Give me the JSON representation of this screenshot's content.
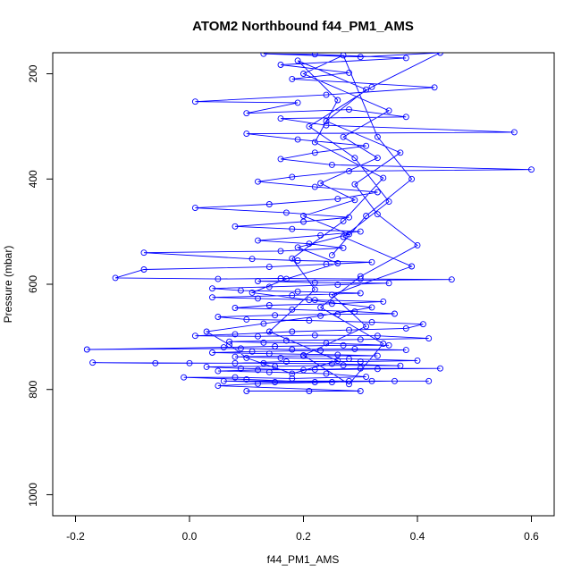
{
  "chart_data": {
    "type": "scatter",
    "title": "ATOM2 Northbound f44_PM1_AMS",
    "xlabel": "f44_PM1_AMS",
    "ylabel": "Pressure (mbar)",
    "xlim": [
      -0.24,
      0.64
    ],
    "ylim": [
      1040,
      160
    ],
    "y_reversed": true,
    "x_ticks": [
      "-0.2",
      "0.0",
      "0.2",
      "0.4",
      "0.6"
    ],
    "x_tick_values": [
      -0.2,
      0.0,
      0.2,
      0.4,
      0.6
    ],
    "y_ticks": [
      "200",
      "400",
      "600",
      "800",
      "1000"
    ],
    "y_tick_values": [
      200,
      400,
      600,
      800,
      1000
    ],
    "grid": false,
    "legend": "none",
    "series_color": "#0000ff",
    "marker": "open-circle",
    "connected": true,
    "series": [
      {
        "points": [
          [
            0.1,
            803
          ],
          [
            0.21,
            803
          ],
          [
            0.3,
            803
          ],
          [
            0.05,
            793
          ],
          [
            0.12,
            789
          ],
          [
            0.25,
            786
          ],
          [
            0.32,
            784
          ],
          [
            0.06,
            784
          ],
          [
            0.15,
            786
          ],
          [
            0.28,
            784
          ],
          [
            0.42,
            784
          ],
          [
            0.36,
            784
          ],
          [
            0.22,
            786
          ],
          [
            0.1,
            781
          ],
          [
            -0.01,
            777
          ],
          [
            0.08,
            777
          ],
          [
            0.18,
            779
          ],
          [
            0.31,
            776
          ],
          [
            0.24,
            770
          ],
          [
            0.14,
            767
          ],
          [
            0.05,
            765
          ],
          [
            0.12,
            763
          ],
          [
            0.22,
            762
          ],
          [
            0.3,
            760
          ],
          [
            0.44,
            760
          ],
          [
            0.33,
            761
          ],
          [
            0.2,
            763
          ],
          [
            0.09,
            760
          ],
          [
            0.03,
            757
          ],
          [
            0.15,
            756
          ],
          [
            0.27,
            754
          ],
          [
            0.37,
            755
          ],
          [
            0.25,
            751
          ],
          [
            0.13,
            750
          ],
          [
            0.0,
            750
          ],
          [
            -0.06,
            750
          ],
          [
            -0.17,
            749
          ],
          [
            0.08,
            750
          ],
          [
            0.17,
            747
          ],
          [
            0.3,
            747
          ],
          [
            0.4,
            745
          ],
          [
            0.28,
            742
          ],
          [
            0.16,
            740
          ],
          [
            0.08,
            738
          ],
          [
            0.2,
            736
          ],
          [
            0.33,
            736
          ],
          [
            0.26,
            734
          ],
          [
            0.14,
            732
          ],
          [
            0.04,
            730
          ],
          [
            0.11,
            728
          ],
          [
            0.23,
            726
          ],
          [
            0.38,
            725
          ],
          [
            0.29,
            723
          ],
          [
            0.18,
            724
          ],
          [
            0.09,
            722
          ],
          [
            -0.18,
            724
          ],
          [
            0.06,
            720
          ],
          [
            0.15,
            718
          ],
          [
            0.27,
            716
          ],
          [
            0.35,
            716
          ],
          [
            0.24,
            712
          ],
          [
            0.13,
            711
          ],
          [
            0.07,
            709
          ],
          [
            0.17,
            707
          ],
          [
            0.3,
            705
          ],
          [
            0.42,
            703
          ],
          [
            0.33,
            698
          ],
          [
            0.22,
            697
          ],
          [
            0.12,
            699
          ],
          [
            0.01,
            698
          ],
          [
            0.08,
            695
          ],
          [
            0.18,
            690
          ],
          [
            0.28,
            687
          ],
          [
            0.38,
            684
          ],
          [
            0.41,
            676
          ],
          [
            0.32,
            672
          ],
          [
            0.21,
            669
          ],
          [
            0.1,
            667
          ],
          [
            0.05,
            662
          ],
          [
            0.15,
            659
          ],
          [
            0.26,
            657
          ],
          [
            0.36,
            656
          ],
          [
            0.29,
            652
          ],
          [
            0.18,
            648
          ],
          [
            0.08,
            645
          ],
          [
            0.14,
            640
          ],
          [
            0.25,
            637
          ],
          [
            0.34,
            633
          ],
          [
            0.22,
            630
          ],
          [
            0.12,
            627
          ],
          [
            0.04,
            625
          ],
          [
            0.18,
            621
          ],
          [
            0.3,
            617
          ],
          [
            0.19,
            614
          ],
          [
            0.09,
            612
          ],
          [
            0.04,
            608
          ],
          [
            0.14,
            605
          ],
          [
            0.26,
            601
          ],
          [
            0.35,
            598
          ],
          [
            0.22,
            597
          ],
          [
            0.12,
            594
          ],
          [
            0.46,
            591
          ],
          [
            0.3,
            590
          ],
          [
            0.16,
            589
          ],
          [
            0.05,
            590
          ],
          [
            -0.13,
            588
          ],
          [
            -0.08,
            572
          ],
          [
            0.14,
            567
          ],
          [
            0.24,
            562
          ],
          [
            0.32,
            558
          ],
          [
            0.19,
            555
          ],
          [
            0.11,
            552
          ],
          [
            -0.08,
            540
          ],
          [
            0.16,
            537
          ],
          [
            0.27,
            531
          ],
          [
            0.21,
            523
          ],
          [
            0.12,
            517
          ],
          [
            0.23,
            507
          ],
          [
            0.3,
            500
          ],
          [
            0.18,
            495
          ],
          [
            0.08,
            490
          ],
          [
            0.2,
            481
          ],
          [
            0.28,
            473
          ],
          [
            0.17,
            464
          ],
          [
            0.01,
            455
          ],
          [
            0.14,
            448
          ],
          [
            0.26,
            438
          ],
          [
            0.33,
            425
          ],
          [
            0.22,
            415
          ],
          [
            0.12,
            405
          ],
          [
            0.18,
            396
          ],
          [
            0.28,
            385
          ],
          [
            0.6,
            382
          ],
          [
            0.25,
            373
          ],
          [
            0.16,
            362
          ],
          [
            0.22,
            350
          ],
          [
            0.31,
            337
          ],
          [
            0.19,
            325
          ],
          [
            0.1,
            314
          ],
          [
            0.57,
            311
          ],
          [
            0.24,
            298
          ],
          [
            0.16,
            285
          ],
          [
            0.38,
            282
          ],
          [
            0.28,
            268
          ],
          [
            0.1,
            275
          ],
          [
            0.19,
            255
          ],
          [
            0.01,
            253
          ],
          [
            0.24,
            240
          ],
          [
            0.43,
            226
          ],
          [
            0.18,
            210
          ],
          [
            0.28,
            198
          ],
          [
            0.16,
            183
          ],
          [
            0.38,
            170
          ],
          [
            0.22,
            163
          ],
          [
            0.13,
            162
          ],
          [
            0.3,
            168
          ],
          [
            0.44,
            160
          ],
          [
            0.32,
            225
          ],
          [
            0.21,
            300
          ],
          [
            0.29,
            360
          ],
          [
            0.35,
            443
          ],
          [
            0.27,
            510
          ],
          [
            0.39,
            566
          ],
          [
            0.25,
            620
          ],
          [
            0.31,
            680
          ],
          [
            0.2,
            735
          ],
          [
            0.28,
            790
          ],
          [
            0.34,
            713
          ],
          [
            0.23,
            644
          ],
          [
            0.3,
            585
          ],
          [
            0.4,
            526
          ],
          [
            0.33,
            467
          ],
          [
            0.29,
            410
          ],
          [
            0.37,
            350
          ],
          [
            0.24,
            290
          ],
          [
            0.31,
            230
          ],
          [
            0.19,
            175
          ],
          [
            0.26,
            250
          ],
          [
            0.22,
            330
          ],
          [
            0.34,
            398
          ],
          [
            0.27,
            480
          ],
          [
            0.18,
            551
          ],
          [
            0.22,
            610
          ],
          [
            0.14,
            690
          ],
          [
            0.26,
            745
          ],
          [
            0.18,
            770
          ],
          [
            0.1,
            740
          ],
          [
            0.07,
            715
          ],
          [
            0.03,
            690
          ],
          [
            0.13,
            675
          ],
          [
            0.23,
            660
          ],
          [
            0.32,
            644
          ],
          [
            0.21,
            630
          ],
          [
            0.11,
            616
          ],
          [
            0.17,
            590
          ],
          [
            0.26,
            560
          ],
          [
            0.19,
            530
          ],
          [
            0.28,
            505
          ],
          [
            0.2,
            470
          ],
          [
            0.29,
            440
          ],
          [
            0.23,
            408
          ],
          [
            0.33,
            360
          ],
          [
            0.27,
            320
          ],
          [
            0.35,
            270
          ],
          [
            0.2,
            200
          ],
          [
            0.27,
            165
          ],
          [
            0.33,
            320
          ],
          [
            0.39,
            400
          ],
          [
            0.31,
            470
          ],
          [
            0.25,
            545
          ]
        ]
      }
    ]
  }
}
